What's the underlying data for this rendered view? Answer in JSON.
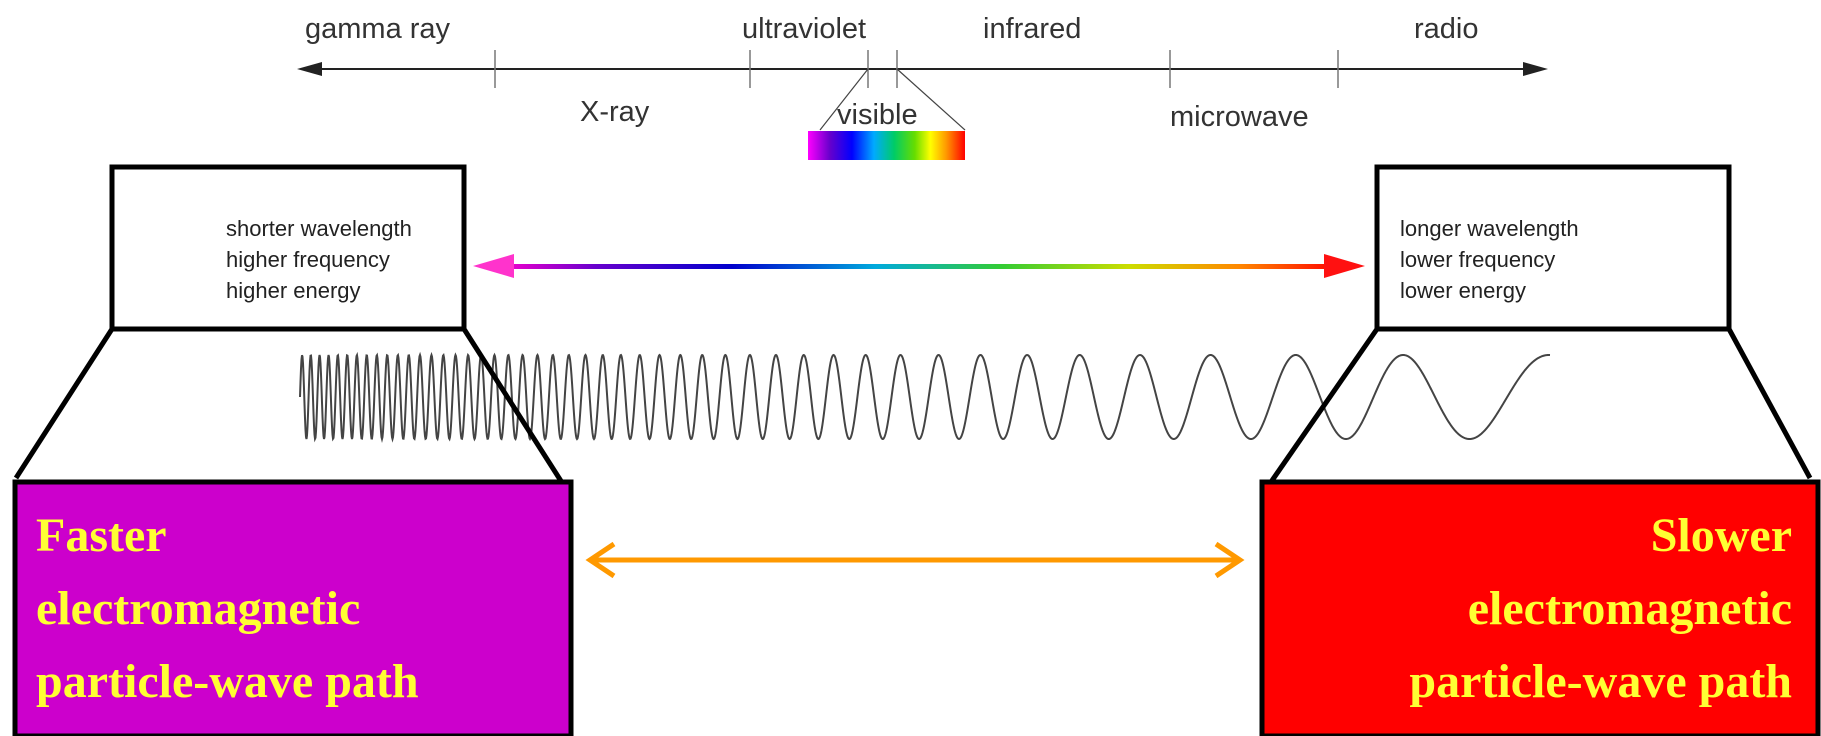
{
  "spectrum": {
    "upper_labels": [
      "gamma ray",
      "ultraviolet",
      "infrared",
      "radio"
    ],
    "lower_labels": [
      "X-ray",
      "visible",
      "microwave"
    ],
    "rainbow_colors": [
      "#ff00ff",
      "#6600cc",
      "#0000ff",
      "#00aaff",
      "#00cc66",
      "#66dd00",
      "#ffff00",
      "#ff9900",
      "#ff0000"
    ]
  },
  "left_box": {
    "lines": [
      "shorter wavelength",
      "higher frequency",
      "higher energy"
    ]
  },
  "right_box": {
    "lines": [
      "longer wavelength",
      "lower frequency",
      "lower energy"
    ]
  },
  "left_panel": {
    "lines": [
      "Faster",
      "electromagnetic",
      "particle-wave path"
    ],
    "color": "#cc00cc",
    "text_color": "#ffff33"
  },
  "right_panel": {
    "lines": [
      "Slower",
      "electromagnetic",
      "particle-wave path"
    ],
    "color": "#ff0000",
    "text_color": "#ffff33"
  },
  "colors": {
    "connector_arrow": "#ff9900"
  }
}
